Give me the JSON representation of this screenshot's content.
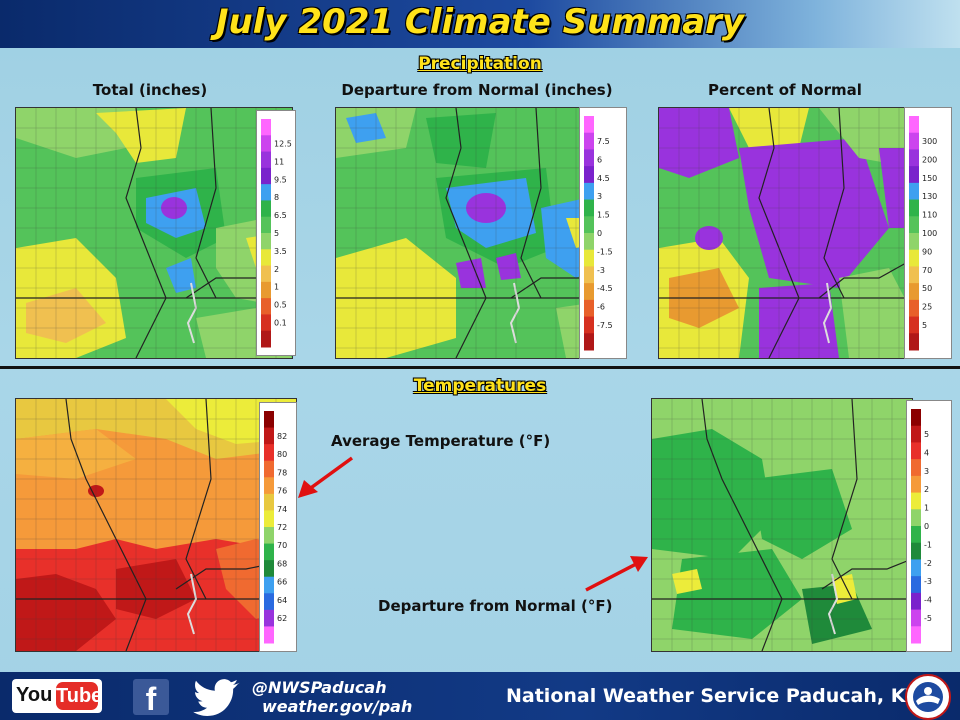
{
  "title": "July 2021 Climate Summary",
  "sections": {
    "precipitation": "Precipitation",
    "temperatures": "Temperatures"
  },
  "maps": {
    "total": {
      "label": "Total (inches)",
      "legend": [
        "12.5",
        "11",
        "9.5",
        "8",
        "6.5",
        "5",
        "3.5",
        "2",
        "1",
        "0.5",
        "0.1"
      ],
      "colors": [
        "#ff66ff",
        "#cc44ee",
        "#9933dd",
        "#7a22cc",
        "#3ea0f0",
        "#2fb34a",
        "#54c35a",
        "#8fd46a",
        "#e8e83a",
        "#f0c050",
        "#e89a30",
        "#e8602a",
        "#d63020",
        "#b01818"
      ]
    },
    "departure_precip": {
      "label": "Departure from Normal (inches)",
      "legend": [
        "7.5",
        "6",
        "4.5",
        "3",
        "1.5",
        "0",
        "-1.5",
        "-3",
        "-4.5",
        "-6",
        "-7.5"
      ],
      "colors": [
        "#ff66ff",
        "#cc44ee",
        "#9933dd",
        "#7a22cc",
        "#3ea0f0",
        "#2fb34a",
        "#54c35a",
        "#8fd46a",
        "#e8e83a",
        "#f0c050",
        "#e89a30",
        "#e8602a",
        "#d63020",
        "#b01818"
      ]
    },
    "percent_normal": {
      "label": "Percent of Normal",
      "legend": [
        "300",
        "200",
        "150",
        "130",
        "110",
        "100",
        "90",
        "70",
        "50",
        "25",
        "5"
      ],
      "colors": [
        "#ff66ff",
        "#cc44ee",
        "#9933dd",
        "#7a22cc",
        "#3ea0f0",
        "#2fb34a",
        "#54c35a",
        "#8fd46a",
        "#e8e83a",
        "#f0c050",
        "#e89a30",
        "#e8602a",
        "#d63020",
        "#b01818"
      ]
    },
    "avg_temp": {
      "label": "Average Temperature (°F)",
      "legend": [
        "82",
        "80",
        "78",
        "76",
        "74",
        "72",
        "70",
        "68",
        "66",
        "64",
        "62"
      ],
      "colors": [
        "#8b0000",
        "#c01818",
        "#e8302a",
        "#f06a30",
        "#f59a3a",
        "#e8c840",
        "#ecec3a",
        "#8fd46a",
        "#2fb34a",
        "#1f8a3a",
        "#3ea0f0",
        "#2a6ae0",
        "#9933dd",
        "#ff66ff"
      ]
    },
    "temp_departure": {
      "label": "Departure from Normal (°F)",
      "legend": [
        "5",
        "4",
        "3",
        "2",
        "1",
        "0",
        "-1",
        "-2",
        "-3",
        "-4",
        "-5"
      ],
      "colors": [
        "#8b0000",
        "#c01818",
        "#e8302a",
        "#f06a30",
        "#f59a3a",
        "#ecec3a",
        "#8fd46a",
        "#2fb34a",
        "#1f8a3a",
        "#3ea0f0",
        "#2a6ae0",
        "#7a22cc",
        "#cc44ee",
        "#ff66ff"
      ]
    }
  },
  "footer": {
    "youtube_you": "You",
    "youtube_tube": "Tube",
    "facebook": "f",
    "twitter_handle": "@NWSPaducah",
    "website": "weather.gov/pah",
    "office": "National Weather Service Paducah, KY"
  },
  "colors": {
    "title_yellow": "#ffe21a",
    "header_navy": "#0a2a6b",
    "arrow_red": "#e01010",
    "background": "#a9d6e8"
  },
  "icons": [
    "youtube-icon",
    "facebook-icon",
    "twitter-icon",
    "nws-logo-icon"
  ]
}
